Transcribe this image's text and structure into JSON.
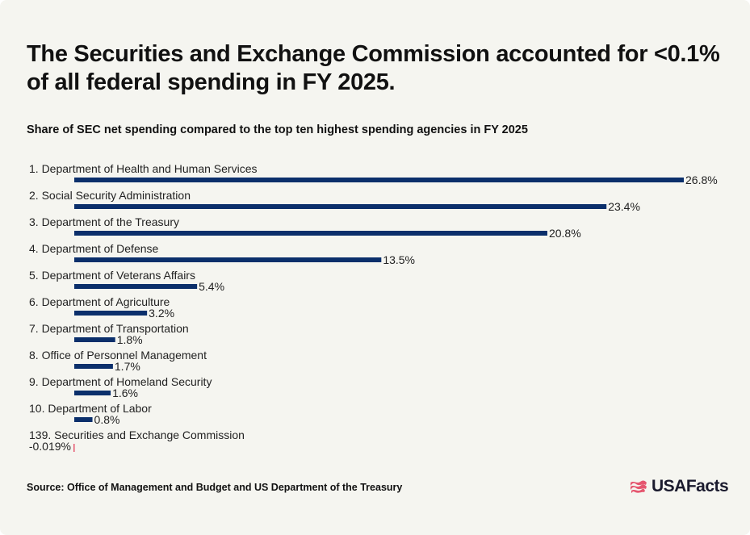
{
  "title": "The Securities and Exchange Commission accounted for <0.1% of all federal spending in FY 2025.",
  "subtitle": "Share of SEC net spending compared to the top ten highest spending agencies in FY 2025",
  "source": "Source: Office of Management and Budget and US Department of the Treasury",
  "logo": {
    "text": "USAFacts",
    "icon": "us-map-flag-icon"
  },
  "colors": {
    "bar": "#0b2f6b",
    "negative_bar": "#e5566f",
    "background": "#f5f5f0",
    "text": "#111111"
  },
  "chart_data": {
    "type": "bar",
    "orientation": "horizontal",
    "title": "The Securities and Exchange Commission accounted for <0.1% of all federal spending in FY 2025.",
    "subtitle": "Share of SEC net spending compared to the top ten highest spending agencies in FY 2025",
    "categories": [
      "1. Department of Health and Human Services",
      "2. Social Security Administration",
      "3. Department of the Treasury",
      "4. Department of Defense",
      "5. Department of Veterans Affairs",
      "6. Department of Agriculture",
      "7. Department of Transportation",
      "8. Office of Personnel Management",
      "9. Department of Homeland Security",
      "10. Department of Labor",
      "139. Securities and Exchange Commission"
    ],
    "values": [
      26.8,
      23.4,
      20.8,
      13.5,
      5.4,
      3.2,
      1.8,
      1.7,
      1.6,
      0.8,
      -0.019
    ],
    "value_labels": [
      "26.8%",
      "23.4%",
      "20.8%",
      "13.5%",
      "5.4%",
      "3.2%",
      "1.8%",
      "1.7%",
      "1.6%",
      "0.8%",
      "-0.019%"
    ],
    "unit": "%",
    "xlim": [
      0,
      26.8
    ],
    "grid": false,
    "legend": "none"
  }
}
